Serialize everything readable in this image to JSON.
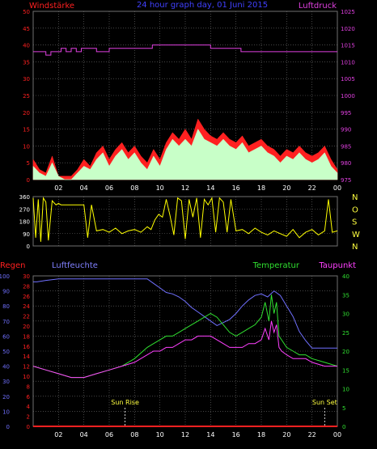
{
  "title": "24 hour graph day, 01 Juni 2015",
  "colors": {
    "wind_speed": "#ff2020",
    "gust": "#c8ffc8",
    "pressure": "#e040e0",
    "direction": "#ffff00",
    "humidity": "#7070ff",
    "temperature": "#30e030",
    "dewpoint": "#ff40ff",
    "rain": "#ff2020",
    "grid": "#707070",
    "axis_text": "#ffffff",
    "sun_text": "#ffff40"
  },
  "chart_data": [
    {
      "type": "line",
      "name": "wind-pressure",
      "ylabel_left": "Windstärke",
      "ylabel_right": "Luftdruck",
      "x_ticks": [
        "02",
        "04",
        "06",
        "08",
        "10",
        "12",
        "14",
        "16",
        "18",
        "20",
        "22",
        "00"
      ],
      "y_left_ticks": [
        "0",
        "5",
        "10",
        "15",
        "20",
        "25",
        "30",
        "35",
        "40",
        "45",
        "50"
      ],
      "y_right_ticks": [
        "975",
        "980",
        "985",
        "990",
        "995",
        "1000",
        "1005",
        "1010",
        "1015",
        "1020",
        "1025"
      ],
      "ylim_left": [
        0,
        50
      ],
      "ylim_right": [
        975,
        1025
      ],
      "series": [
        {
          "name": "Windstärke",
          "x": [
            0,
            0.5,
            1,
            1.5,
            2,
            2.5,
            3,
            3.5,
            4,
            4.5,
            5,
            5.5,
            6,
            6.5,
            7,
            7.5,
            8,
            8.5,
            9,
            9.5,
            10,
            10.5,
            11,
            11.5,
            12,
            12.5,
            13,
            13.5,
            14,
            14.5,
            15,
            15.5,
            16,
            16.5,
            17,
            17.5,
            18,
            18.5,
            19,
            19.5,
            20,
            20.5,
            21,
            21.5,
            22,
            22.5,
            23,
            23.5,
            24
          ],
          "values": [
            6,
            3,
            2,
            7,
            1,
            1,
            1,
            3,
            6,
            4,
            8,
            10,
            6,
            9,
            11,
            8,
            10,
            7,
            5,
            9,
            6,
            11,
            14,
            12,
            15,
            12,
            18,
            15,
            13,
            12,
            14,
            12,
            11,
            13,
            10,
            11,
            12,
            10,
            9,
            7,
            9,
            8,
            10,
            8,
            7,
            8,
            10,
            6,
            3
          ]
        },
        {
          "name": "Böen",
          "x": [
            0,
            0.5,
            1,
            1.5,
            2,
            2.5,
            3,
            3.5,
            4,
            4.5,
            5,
            5.5,
            6,
            6.5,
            7,
            7.5,
            8,
            8.5,
            9,
            9.5,
            10,
            10.5,
            11,
            11.5,
            12,
            12.5,
            13,
            13.5,
            14,
            14.5,
            15,
            15.5,
            16,
            16.5,
            17,
            17.5,
            18,
            18.5,
            19,
            19.5,
            20,
            20.5,
            21,
            21.5,
            22,
            22.5,
            23,
            23.5,
            24
          ],
          "values": [
            4,
            2,
            1,
            5,
            1,
            0,
            0,
            2,
            4,
            3,
            6,
            8,
            4,
            7,
            9,
            6,
            8,
            5,
            3,
            7,
            4,
            9,
            12,
            10,
            12,
            10,
            15,
            12,
            11,
            10,
            12,
            10,
            9,
            11,
            8,
            9,
            10,
            8,
            7,
            5,
            7,
            6,
            8,
            6,
            5,
            6,
            8,
            4,
            2
          ]
        },
        {
          "name": "Luftdruck",
          "x": [
            0,
            0.7,
            1.0,
            1.4,
            1.8,
            2.2,
            2.6,
            3.0,
            3.4,
            3.8,
            4.2,
            5.0,
            6.0,
            7.0,
            8.0,
            9.0,
            9.4,
            10,
            11,
            12,
            13,
            14,
            15,
            15.8,
            16.4,
            17,
            18,
            19,
            20,
            21,
            22,
            23,
            24
          ],
          "values": [
            1013,
            1013,
            1012,
            1013,
            1013,
            1014,
            1013,
            1014,
            1013,
            1014,
            1014,
            1013,
            1014,
            1014,
            1014,
            1014,
            1015,
            1015,
            1015,
            1015,
            1015,
            1014,
            1014,
            1014,
            1013,
            1013,
            1013,
            1013,
            1013,
            1013,
            1013,
            1013,
            1013
          ]
        }
      ]
    },
    {
      "type": "line",
      "name": "wind-direction",
      "y_left_ticks": [
        "0",
        "90",
        "180",
        "270",
        "360"
      ],
      "y_right_ticks": [
        "N",
        "W",
        "S",
        "O",
        "N"
      ],
      "ylim": [
        0,
        360
      ],
      "series": [
        {
          "name": "Windrichtung",
          "x": [
            0,
            0.2,
            0.4,
            0.6,
            0.8,
            1.0,
            1.2,
            1.5,
            1.8,
            2.0,
            2.2,
            2.5,
            3.0,
            3.5,
            4.0,
            4.3,
            4.6,
            5,
            5.5,
            6,
            6.5,
            7,
            7.5,
            8,
            8.5,
            9,
            9.3,
            9.6,
            9.9,
            10.2,
            10.5,
            10.8,
            11.1,
            11.4,
            11.7,
            12,
            12.3,
            12.6,
            12.9,
            13.2,
            13.5,
            13.8,
            14.1,
            14.4,
            14.7,
            15,
            15.3,
            15.6,
            16,
            16.5,
            17,
            17.5,
            18,
            18.5,
            19,
            19.5,
            20,
            20.5,
            21,
            21.5,
            22,
            22.5,
            23,
            23.3,
            23.6,
            24
          ],
          "values": [
            350,
            60,
            340,
            30,
            350,
            320,
            40,
            330,
            300,
            310,
            300,
            300,
            300,
            300,
            300,
            60,
            300,
            110,
            120,
            100,
            130,
            90,
            110,
            120,
            100,
            140,
            120,
            190,
            230,
            210,
            340,
            220,
            80,
            350,
            330,
            50,
            340,
            210,
            350,
            60,
            340,
            300,
            350,
            100,
            350,
            320,
            100,
            340,
            110,
            120,
            90,
            130,
            100,
            80,
            110,
            90,
            70,
            120,
            60,
            100,
            120,
            80,
            110,
            340,
            100,
            110
          ]
        }
      ]
    },
    {
      "type": "line",
      "name": "humidity-temperature-rain",
      "labels": {
        "regen": "Regen",
        "luftfeuchte": "Luftfeuchte",
        "temperatur": "Temperatur",
        "taupunkt": "Taupunkt"
      },
      "x_ticks": [
        "02",
        "04",
        "06",
        "08",
        "10",
        "12",
        "14",
        "16",
        "18",
        "20",
        "22",
        "00"
      ],
      "y_humidity_ticks": [
        "0",
        "10",
        "20",
        "30",
        "40",
        "50",
        "60",
        "70",
        "80",
        "90",
        "100"
      ],
      "y_rain_ticks": [
        "0",
        "2",
        "4",
        "6",
        "8",
        "10",
        "12",
        "14",
        "16",
        "18",
        "20",
        "22",
        "24",
        "26",
        "28",
        "30"
      ],
      "y_temp_ticks": [
        "0",
        "5",
        "10",
        "15",
        "20",
        "25",
        "30",
        "35",
        "40"
      ],
      "ylim_humidity": [
        0,
        100
      ],
      "ylim_temp": [
        0,
        40
      ],
      "sunrise": {
        "label": "Sun Rise",
        "x": 7.25
      },
      "sunset": {
        "label": "Sun Set",
        "x": 23.0
      },
      "series": [
        {
          "name": "Luftfeuchte",
          "x": [
            0,
            0.3,
            1,
            2,
            3,
            4,
            5,
            6,
            7,
            8,
            9,
            9.5,
            10,
            10.5,
            11,
            11.5,
            12,
            12.5,
            13,
            13.5,
            14,
            14.5,
            15,
            15.5,
            16,
            16.5,
            17,
            17.5,
            18,
            18.5,
            19,
            19.5,
            20,
            20.5,
            21,
            21.5,
            22,
            23,
            24
          ],
          "values": [
            96,
            96,
            97,
            98,
            98,
            98,
            98,
            98,
            98,
            98,
            98,
            95,
            92,
            89,
            88,
            86,
            83,
            79,
            76,
            73,
            70,
            67,
            69,
            71,
            75,
            80,
            84,
            87,
            88,
            86,
            90,
            87,
            80,
            73,
            63,
            57,
            52,
            52,
            52
          ]
        },
        {
          "name": "Temperatur",
          "x": [
            0,
            1,
            2,
            3,
            4,
            5,
            6,
            7,
            8,
            9,
            9.5,
            10,
            10.5,
            11,
            11.5,
            12,
            12.5,
            13,
            13.5,
            14,
            14.5,
            15,
            15.5,
            16,
            16.5,
            17,
            17.5,
            18,
            18.3,
            18.6,
            18.8,
            19.0,
            19.2,
            19.4,
            19.6,
            20,
            20.5,
            21,
            21.5,
            22,
            23,
            24
          ],
          "values": [
            16,
            15,
            14,
            13,
            13,
            14,
            15,
            16,
            18,
            21,
            22,
            23,
            24,
            24,
            25,
            26,
            27,
            28,
            29,
            30,
            29,
            27,
            25,
            24,
            25,
            26,
            27,
            29,
            33,
            28,
            35,
            30,
            33,
            24,
            23,
            21,
            20,
            19,
            19,
            18,
            17,
            16
          ]
        },
        {
          "name": "Taupunkt",
          "x": [
            0,
            1,
            2,
            3,
            4,
            5,
            6,
            7,
            8,
            9,
            9.5,
            10,
            10.5,
            11,
            11.5,
            12,
            12.5,
            13,
            13.5,
            14,
            14.5,
            15,
            15.5,
            16,
            16.5,
            17,
            17.5,
            18,
            18.3,
            18.6,
            18.8,
            19.0,
            19.2,
            19.4,
            19.6,
            20,
            20.5,
            21,
            21.5,
            22,
            23,
            24
          ],
          "values": [
            16,
            15,
            14,
            13,
            13,
            14,
            15,
            16,
            17,
            19,
            20,
            20,
            21,
            21,
            22,
            23,
            23,
            24,
            24,
            24,
            23,
            22,
            21,
            21,
            21,
            22,
            22,
            23,
            26,
            23,
            28,
            25,
            27,
            21,
            20,
            19,
            18,
            18,
            18,
            17,
            16,
            16
          ]
        },
        {
          "name": "Regen",
          "x": [
            0,
            24
          ],
          "values": [
            0,
            0
          ]
        }
      ]
    }
  ]
}
